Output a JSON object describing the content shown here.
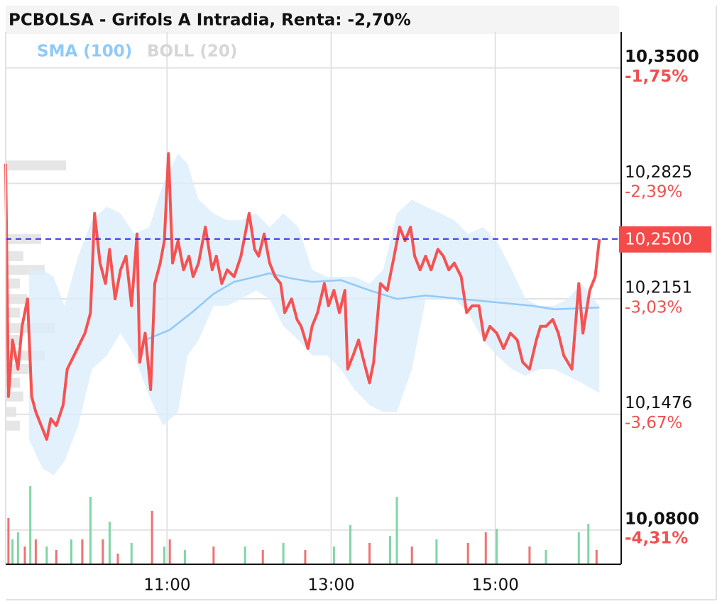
{
  "chart_data": {
    "type": "line",
    "title": "PCBOLSA - Grifols A Intradia, Renta: -2,70%",
    "xlim": [
      542,
      992
    ],
    "xticks": [
      {
        "value": 660,
        "label": "11:00"
      },
      {
        "value": 780,
        "label": "13:00"
      },
      {
        "value": 900,
        "label": "15:00"
      }
    ],
    "ylim": [
      10.06,
      10.371
    ],
    "yticks": [
      {
        "value": 10.35,
        "label": "10,3500"
      },
      {
        "value": 10.2825,
        "label": "10,2825"
      },
      {
        "value": 10.2151,
        "label": "10,2151"
      },
      {
        "value": 10.1476,
        "label": "10,1476"
      },
      {
        "value": 10.08,
        "label": "10,0800"
      }
    ],
    "y2lim": [
      -4.503,
      -1.551
    ],
    "y2ticks": [
      {
        "value": -1.75,
        "label": "-1,75%"
      },
      {
        "value": -2.39,
        "label": "-2,39%"
      },
      {
        "value": -3.03,
        "label": "-3,03%"
      },
      {
        "value": -3.67,
        "label": "-3,67%"
      },
      {
        "value": -4.31,
        "label": "-4,31%"
      }
    ],
    "grid": true,
    "price": {
      "color": "#f55252",
      "x": [
        542,
        544,
        547,
        551,
        554,
        558,
        561,
        564,
        572,
        575,
        579,
        584,
        587,
        592,
        600,
        604,
        607,
        611,
        615,
        618,
        622,
        626,
        630,
        634,
        638,
        640,
        644,
        648,
        651,
        655,
        658,
        661,
        664,
        668,
        672,
        676,
        679,
        683,
        688,
        693,
        696,
        700,
        704,
        709,
        714,
        720,
        724,
        727,
        731,
        735,
        739,
        743,
        746,
        751,
        755,
        758,
        763,
        766,
        770,
        775,
        778,
        782,
        786,
        790,
        792,
        796,
        800,
        804,
        808,
        811,
        816,
        821,
        826,
        830,
        834,
        838,
        841,
        845,
        849,
        853,
        858,
        862,
        866,
        870,
        875,
        879,
        883,
        888,
        892,
        896,
        901,
        906,
        911,
        916,
        920,
        925,
        930,
        933,
        937,
        942,
        946,
        950,
        956,
        961,
        964,
        969,
        973,
        976
      ],
      "values": [
        10.294,
        10.158,
        10.191,
        10.174,
        10.199,
        10.215,
        10.158,
        10.149,
        10.133,
        10.145,
        10.141,
        10.153,
        10.174,
        10.182,
        10.195,
        10.207,
        10.265,
        10.236,
        10.224,
        10.244,
        10.215,
        10.232,
        10.24,
        10.211,
        10.253,
        10.178,
        10.195,
        10.162,
        10.224,
        10.236,
        10.249,
        10.3,
        10.236,
        10.249,
        10.232,
        10.24,
        10.228,
        10.236,
        10.257,
        10.232,
        10.24,
        10.224,
        10.232,
        10.228,
        10.24,
        10.265,
        10.244,
        10.24,
        10.253,
        10.236,
        10.228,
        10.224,
        10.207,
        10.215,
        10.203,
        10.199,
        10.186,
        10.199,
        10.207,
        10.224,
        10.211,
        10.22,
        10.207,
        10.22,
        10.174,
        10.182,
        10.191,
        10.178,
        10.166,
        10.178,
        10.224,
        10.22,
        10.24,
        10.257,
        10.249,
        10.257,
        10.24,
        10.232,
        10.24,
        10.232,
        10.244,
        10.24,
        10.232,
        10.236,
        10.228,
        10.207,
        10.211,
        10.211,
        10.191,
        10.199,
        10.195,
        10.186,
        10.195,
        10.191,
        10.178,
        10.174,
        10.191,
        10.199,
        10.199,
        10.203,
        10.195,
        10.182,
        10.174,
        10.224,
        10.195,
        10.22,
        10.228,
        10.25
      ]
    },
    "sma": {
      "name": "SMA (100)",
      "color": "#90caf9",
      "x": [
        644,
        662,
        678,
        694,
        709,
        725,
        735,
        751,
        766,
        787,
        808,
        828,
        849,
        875,
        901,
        927,
        943,
        976
      ],
      "values": [
        10.191,
        10.197,
        10.207,
        10.218,
        10.225,
        10.228,
        10.23,
        10.227,
        10.225,
        10.226,
        10.22,
        10.215,
        10.217,
        10.215,
        10.213,
        10.211,
        10.209,
        10.21
      ]
    },
    "boll": {
      "name": "BOLL (20)",
      "color": "#d6d6d6",
      "fill": "#dcedfb",
      "x": [
        559,
        569,
        577,
        585,
        595,
        605,
        616,
        626,
        636,
        647,
        657,
        668,
        675,
        683,
        694,
        704,
        714,
        725,
        735,
        745,
        756,
        766,
        777,
        787,
        797,
        808,
        818,
        828,
        839,
        849,
        860,
        870,
        880,
        891,
        901,
        912,
        922,
        932,
        943,
        953,
        963,
        976
      ],
      "upper": [
        10.232,
        10.232,
        10.228,
        10.211,
        10.24,
        10.261,
        10.269,
        10.265,
        10.253,
        10.257,
        10.282,
        10.3,
        10.294,
        10.273,
        10.265,
        10.261,
        10.261,
        10.265,
        10.257,
        10.265,
        10.257,
        10.232,
        10.228,
        10.228,
        10.228,
        10.224,
        10.232,
        10.265,
        10.273,
        10.269,
        10.265,
        10.261,
        10.253,
        10.257,
        10.249,
        10.232,
        10.215,
        10.211,
        10.211,
        10.215,
        10.224,
        10.211
      ],
      "lower": [
        10.133,
        10.116,
        10.112,
        10.12,
        10.141,
        10.174,
        10.182,
        10.195,
        10.182,
        10.158,
        10.141,
        10.149,
        10.182,
        10.191,
        10.211,
        10.211,
        10.215,
        10.22,
        10.215,
        10.199,
        10.191,
        10.182,
        10.182,
        10.174,
        10.162,
        10.153,
        10.149,
        10.149,
        10.174,
        10.215,
        10.215,
        10.215,
        10.207,
        10.191,
        10.182,
        10.174,
        10.17,
        10.174,
        10.174,
        10.17,
        10.166,
        10.16
      ]
    },
    "last": {
      "value": 10.25,
      "label": "10,2500",
      "color": "#f44a4a",
      "line_color": "#2a2ae0"
    },
    "volume": {
      "ylim": [
        0,
        150
      ],
      "up_color": "#7fd6a6",
      "down_color": "#f07272",
      "x": [
        544,
        547,
        551,
        556,
        560,
        564,
        572,
        579,
        590,
        598,
        604,
        613,
        618,
        624,
        634,
        649,
        658,
        662,
        673,
        694,
        717,
        730,
        745,
        761,
        782,
        794,
        808,
        823,
        828,
        839,
        857,
        880,
        893,
        901,
        925,
        937,
        961,
        968,
        974
      ],
      "values": [
        65,
        35,
        45,
        25,
        110,
        35,
        25,
        20,
        35,
        35,
        95,
        35,
        60,
        15,
        30,
        75,
        25,
        35,
        20,
        25,
        25,
        20,
        30,
        20,
        25,
        55,
        30,
        40,
        95,
        25,
        35,
        30,
        45,
        50,
        25,
        20,
        45,
        57,
        20
      ],
      "up": [
        false,
        true,
        true,
        false,
        true,
        false,
        true,
        false,
        true,
        false,
        true,
        false,
        true,
        false,
        true,
        false,
        true,
        false,
        true,
        false,
        true,
        false,
        true,
        false,
        true,
        true,
        false,
        true,
        true,
        false,
        true,
        false,
        false,
        true,
        false,
        true,
        true,
        true,
        false
      ]
    },
    "volume_profile": {
      "xlim": [
        0,
        100
      ],
      "color": "#e6e6e6",
      "prices": [
        10.293,
        10.25,
        10.24,
        10.232,
        10.224,
        10.215,
        10.207,
        10.198,
        10.191,
        10.182,
        10.174,
        10.166,
        10.158,
        10.149,
        10.141
      ],
      "values": [
        85,
        50,
        25,
        55,
        20,
        30,
        20,
        70,
        20,
        55,
        35,
        20,
        25,
        15,
        20
      ]
    }
  }
}
